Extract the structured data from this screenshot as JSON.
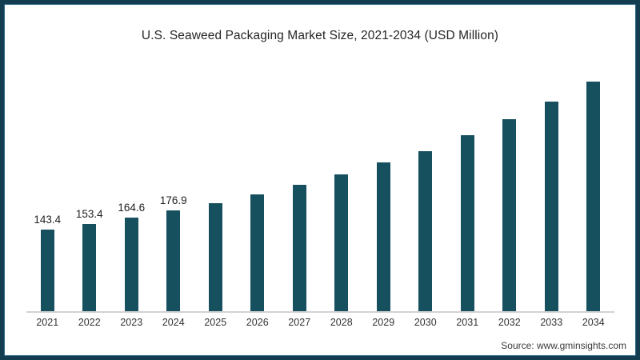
{
  "title": "U.S. Seaweed Packaging Market Size, 2021-2034 (USD Million)",
  "source_text": "Source: www.gminsights.com",
  "colors": {
    "bar": "#16505f",
    "frame_border": "#123e50",
    "frame_inner_line": "#2e6a8a",
    "axis_line": "#d2d2d2",
    "title_text": "#252525",
    "label_text": "#1f1f1f",
    "tick_text": "#333333",
    "source_text": "#3a3a3a"
  },
  "chart_data": {
    "type": "bar",
    "title": "U.S. Seaweed Packaging Market Size, 2021-2034 (USD Million)",
    "categories": [
      "2021",
      "2022",
      "2023",
      "2024",
      "2025",
      "2026",
      "2027",
      "2028",
      "2029",
      "2030",
      "2031",
      "2032",
      "2033",
      "2034"
    ],
    "values": [
      143.4,
      153.4,
      164.6,
      176.9,
      190.4,
      205.1,
      222.3,
      240.0,
      260.9,
      281.1,
      308.3,
      336.2,
      366.9,
      402.5
    ],
    "data_labels": [
      "143.4",
      "153.4",
      "164.6",
      "176.9",
      "",
      "",
      "",
      "",
      "",
      "",
      "",
      "",
      "",
      ""
    ],
    "xlabel": "",
    "ylabel": "",
    "ylim": [
      0,
      420
    ],
    "grid": false,
    "legend": false
  }
}
